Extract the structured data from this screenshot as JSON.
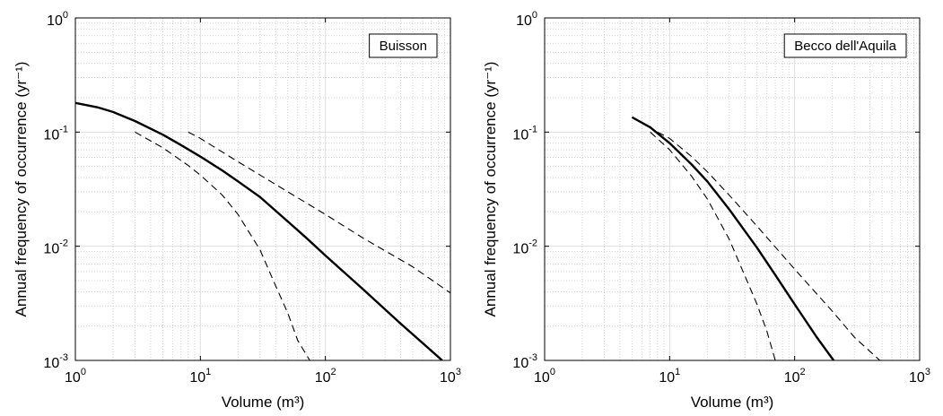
{
  "chart_data": [
    {
      "type": "line",
      "xscale": "log",
      "yscale": "log",
      "xlim": [
        1,
        1000
      ],
      "ylim": [
        0.001,
        1
      ],
      "grid": true,
      "legend_placement": "top-right",
      "legend_text": "Buisson",
      "xlabel": "Volume (m³)",
      "ylabel": "Annual frequency of occurrence (yr⁻¹)",
      "x_ticks": [
        {
          "base": "10",
          "exp": "0"
        },
        {
          "base": "10",
          "exp": "1"
        },
        {
          "base": "10",
          "exp": "2"
        },
        {
          "base": "10",
          "exp": "3"
        }
      ],
      "y_ticks": [
        {
          "base": "10",
          "exp": "-3"
        },
        {
          "base": "10",
          "exp": "-2"
        },
        {
          "base": "10",
          "exp": "-1"
        },
        {
          "base": "10",
          "exp": "0"
        }
      ],
      "series": [
        {
          "style": "solid",
          "x": [
            1,
            1.5,
            2,
            3,
            5,
            7,
            10,
            15,
            20,
            30,
            50,
            70,
            100,
            200,
            400,
            860
          ],
          "y": [
            0.18,
            0.165,
            0.15,
            0.125,
            0.095,
            0.077,
            0.061,
            0.046,
            0.037,
            0.027,
            0.0165,
            0.0119,
            0.0083,
            0.0042,
            0.0021,
            0.001
          ]
        },
        {
          "style": "dashed",
          "x": [
            8,
            10,
            20,
            50,
            100,
            200,
            500,
            1000
          ],
          "y": [
            0.1,
            0.088,
            0.055,
            0.03,
            0.019,
            0.0118,
            0.0066,
            0.0039
          ]
        },
        {
          "style": "dashed",
          "x": [
            3,
            5,
            8,
            10,
            15,
            20,
            30,
            40,
            50,
            60,
            75
          ],
          "y": [
            0.1,
            0.073,
            0.051,
            0.042,
            0.028,
            0.019,
            0.0093,
            0.0045,
            0.0026,
            0.0015,
            0.001
          ]
        }
      ]
    },
    {
      "type": "line",
      "xscale": "log",
      "yscale": "log",
      "xlim": [
        1,
        1000
      ],
      "ylim": [
        0.001,
        1
      ],
      "grid": true,
      "legend_placement": "top-right",
      "legend_text": "Becco dell'Aquila",
      "xlabel": "Volume (m³)",
      "ylabel": "Annual frequency of occurrence (yr⁻¹)",
      "x_ticks": [
        {
          "base": "10",
          "exp": "0"
        },
        {
          "base": "10",
          "exp": "1"
        },
        {
          "base": "10",
          "exp": "2"
        },
        {
          "base": "10",
          "exp": "3"
        }
      ],
      "y_ticks": [
        {
          "base": "10",
          "exp": "-3"
        },
        {
          "base": "10",
          "exp": "-2"
        },
        {
          "base": "10",
          "exp": "-1"
        },
        {
          "base": "10",
          "exp": "0"
        }
      ],
      "series": [
        {
          "style": "solid",
          "x": [
            5,
            7,
            10,
            15,
            20,
            30,
            50,
            70,
            100,
            150,
            205
          ],
          "y": [
            0.135,
            0.11,
            0.08,
            0.052,
            0.037,
            0.021,
            0.0097,
            0.0056,
            0.0031,
            0.0016,
            0.001
          ]
        },
        {
          "style": "dashed",
          "x": [
            8,
            10,
            15,
            20,
            30,
            50,
            100,
            200,
            300,
            480
          ],
          "y": [
            0.1,
            0.088,
            0.061,
            0.045,
            0.028,
            0.015,
            0.0063,
            0.0027,
            0.0016,
            0.001
          ]
        },
        {
          "style": "dashed",
          "x": [
            7,
            10,
            15,
            20,
            30,
            40,
            50,
            60,
            70
          ],
          "y": [
            0.1,
            0.07,
            0.041,
            0.026,
            0.0115,
            0.0055,
            0.0031,
            0.0018,
            0.001
          ]
        }
      ]
    }
  ]
}
